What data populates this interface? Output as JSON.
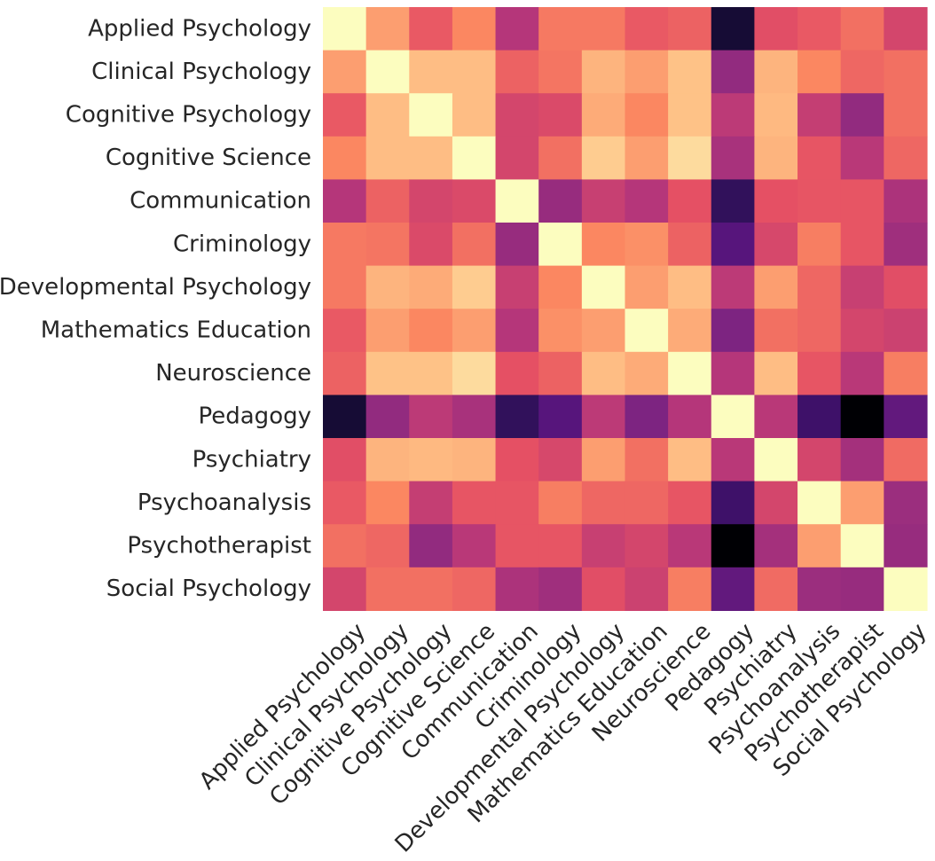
{
  "chart_data": {
    "type": "heatmap",
    "title": "",
    "xlabel": "",
    "ylabel": "",
    "colormap": "magma",
    "grid": false,
    "legend": "none",
    "vrange": [
      0,
      1
    ],
    "categories": [
      "Applied Psychology",
      "Clinical Psychology",
      "Cognitive Psychology",
      "Cognitive Science",
      "Communication",
      "Criminology",
      "Developmental Psychology",
      "Mathematics Education",
      "Neuroscience",
      "Pedagogy",
      "Psychiatry",
      "Psychoanalysis",
      "Psychotherapist",
      "Social Psychology"
    ],
    "values": [
      [
        1.0,
        0.8,
        0.65,
        0.75,
        0.5,
        0.72,
        0.72,
        0.65,
        0.67,
        0.1,
        0.62,
        0.65,
        0.7,
        0.58
      ],
      [
        0.8,
        1.0,
        0.87,
        0.87,
        0.67,
        0.71,
        0.85,
        0.8,
        0.88,
        0.42,
        0.85,
        0.75,
        0.68,
        0.7
      ],
      [
        0.65,
        0.87,
        1.0,
        0.87,
        0.58,
        0.6,
        0.83,
        0.75,
        0.88,
        0.52,
        0.86,
        0.54,
        0.42,
        0.7
      ],
      [
        0.75,
        0.87,
        0.87,
        1.0,
        0.58,
        0.7,
        0.9,
        0.8,
        0.93,
        0.47,
        0.85,
        0.64,
        0.51,
        0.68
      ],
      [
        0.5,
        0.67,
        0.58,
        0.6,
        1.0,
        0.43,
        0.55,
        0.5,
        0.63,
        0.18,
        0.63,
        0.64,
        0.64,
        0.48
      ],
      [
        0.72,
        0.71,
        0.6,
        0.7,
        0.43,
        1.0,
        0.75,
        0.77,
        0.67,
        0.27,
        0.59,
        0.73,
        0.64,
        0.45
      ],
      [
        0.72,
        0.85,
        0.83,
        0.9,
        0.55,
        0.75,
        1.0,
        0.8,
        0.87,
        0.52,
        0.8,
        0.68,
        0.55,
        0.62
      ],
      [
        0.65,
        0.8,
        0.75,
        0.8,
        0.5,
        0.77,
        0.8,
        1.0,
        0.83,
        0.37,
        0.7,
        0.68,
        0.58,
        0.56
      ],
      [
        0.67,
        0.88,
        0.88,
        0.93,
        0.63,
        0.67,
        0.87,
        0.83,
        1.0,
        0.5,
        0.87,
        0.64,
        0.51,
        0.73
      ],
      [
        0.1,
        0.42,
        0.52,
        0.47,
        0.18,
        0.27,
        0.52,
        0.37,
        0.5,
        1.0,
        0.51,
        0.21,
        0.0,
        0.3
      ],
      [
        0.62,
        0.85,
        0.86,
        0.85,
        0.63,
        0.59,
        0.8,
        0.7,
        0.87,
        0.51,
        1.0,
        0.58,
        0.46,
        0.69
      ],
      [
        0.65,
        0.75,
        0.54,
        0.64,
        0.64,
        0.73,
        0.68,
        0.68,
        0.64,
        0.21,
        0.58,
        1.0,
        0.8,
        0.44
      ],
      [
        0.7,
        0.68,
        0.42,
        0.51,
        0.64,
        0.64,
        0.55,
        0.58,
        0.51,
        0.0,
        0.46,
        0.8,
        1.0,
        0.43
      ],
      [
        0.58,
        0.7,
        0.7,
        0.68,
        0.48,
        0.45,
        0.62,
        0.56,
        0.73,
        0.3,
        0.69,
        0.44,
        0.43,
        1.0
      ]
    ]
  }
}
